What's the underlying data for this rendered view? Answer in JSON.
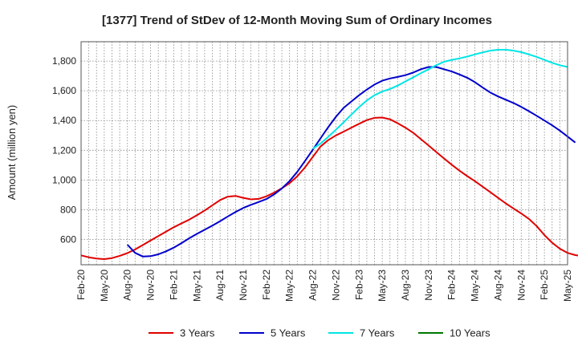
{
  "chart_data": {
    "type": "line",
    "title": "[1377]  Trend of StDev of 12-Month Moving Sum of Ordinary Incomes",
    "xlabel": "",
    "ylabel": "Amount (million yen)",
    "ylim": [
      430,
      1930
    ],
    "y_ticks": [
      600,
      800,
      1000,
      1200,
      1400,
      1600,
      1800
    ],
    "y_tick_labels": [
      "600",
      "800",
      "1,000",
      "1,200",
      "1,400",
      "1,600",
      "1,800"
    ],
    "x_ticks": [
      "Feb-20",
      "May-20",
      "Aug-20",
      "Nov-20",
      "Feb-21",
      "May-21",
      "Aug-21",
      "Nov-21",
      "Feb-22",
      "May-22",
      "Aug-22",
      "Nov-22",
      "Feb-23",
      "May-23",
      "Aug-23",
      "Nov-23",
      "Feb-24",
      "May-24",
      "Aug-24",
      "Nov-24",
      "Feb-25",
      "May-25"
    ],
    "grid": true,
    "legend_position": "bottom",
    "series": [
      {
        "name": "3 Years",
        "color": "#e00000",
        "start_index": 0,
        "values": [
          493,
          480,
          472,
          468,
          475,
          490,
          508,
          533,
          563,
          593,
          623,
          653,
          682,
          708,
          733,
          763,
          795,
          830,
          865,
          888,
          893,
          880,
          870,
          873,
          890,
          915,
          945,
          978,
          1025,
          1085,
          1155,
          1225,
          1268,
          1300,
          1325,
          1352,
          1378,
          1403,
          1418,
          1420,
          1408,
          1382,
          1352,
          1318,
          1275,
          1232,
          1188,
          1145,
          1103,
          1063,
          1026,
          992,
          955,
          918,
          880,
          843,
          808,
          775,
          738,
          690,
          630,
          578,
          538,
          510,
          495,
          488,
          487
        ]
      },
      {
        "name": "5 Years",
        "color": "#0000cc",
        "start_index": 6,
        "values": [
          565,
          510,
          485,
          488,
          500,
          520,
          545,
          575,
          608,
          638,
          665,
          693,
          723,
          755,
          785,
          812,
          833,
          852,
          872,
          903,
          943,
          993,
          1055,
          1128,
          1203,
          1280,
          1355,
          1425,
          1485,
          1528,
          1570,
          1608,
          1642,
          1668,
          1683,
          1693,
          1705,
          1722,
          1745,
          1760,
          1760,
          1745,
          1730,
          1710,
          1688,
          1658,
          1622,
          1588,
          1562,
          1540,
          1518,
          1492,
          1463,
          1432,
          1400,
          1368,
          1332,
          1292,
          1252
        ]
      },
      {
        "name": "7 Years",
        "color": "#00e5e5",
        "start_index": 30,
        "values": [
          1210,
          1245,
          1290,
          1338,
          1388,
          1440,
          1490,
          1535,
          1570,
          1595,
          1612,
          1635,
          1663,
          1690,
          1718,
          1745,
          1772,
          1795,
          1808,
          1818,
          1830,
          1845,
          1858,
          1870,
          1876,
          1876,
          1870,
          1860,
          1845,
          1828,
          1808,
          1788,
          1772,
          1760
        ]
      },
      {
        "name": "10 Years",
        "color": "#007700",
        "start_index": 0,
        "values": []
      }
    ]
  }
}
